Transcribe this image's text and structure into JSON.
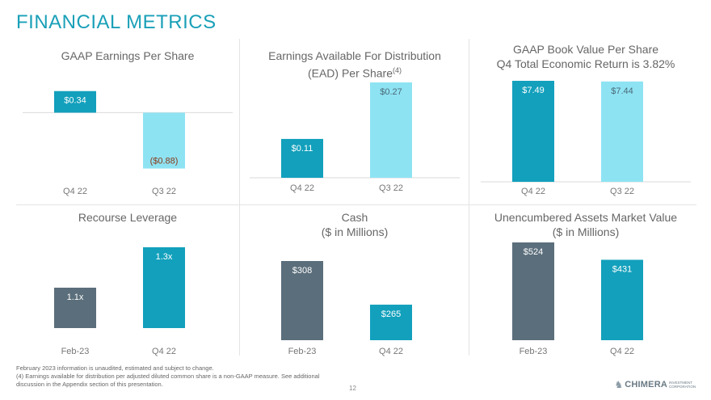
{
  "page": {
    "title": "FINANCIAL METRICS",
    "page_number": "12",
    "footnotes": [
      "February 2023 information is unaudited, estimated and subject to change.",
      "(4) Earnings available for distribution per adjusted diluted common share is a non-GAAP measure. See additional discussion in the Appendix section of this presentation."
    ],
    "logo": {
      "word": "CHIMERA",
      "sub": "INVESTMENT CORPORATION"
    }
  },
  "colors": {
    "teal": "#12a0bc",
    "light_blue": "#8ee3f3",
    "slate": "#5b6e7b",
    "title": "#1aa0b8",
    "text": "#666666"
  },
  "chart_data": [
    {
      "type": "bar",
      "title": "GAAP Earnings Per Share",
      "categories": [
        "Q4 22",
        "Q3 22"
      ],
      "values": [
        0.34,
        -0.88
      ],
      "labels": [
        "$0.34",
        "($0.88)"
      ],
      "colors": [
        "#12a0bc",
        "#8ee3f3"
      ],
      "ylim": [
        -1.0,
        0.4
      ]
    },
    {
      "type": "bar",
      "title": "Earnings Available For Distribution (EAD) Per Share",
      "title_lines": [
        "Earnings Available For Distribution",
        "(EAD) Per Share"
      ],
      "title_superscript": "(4)",
      "categories": [
        "Q4 22",
        "Q3 22"
      ],
      "values": [
        0.11,
        0.27
      ],
      "labels": [
        "$0.11",
        "$0.27"
      ],
      "colors": [
        "#12a0bc",
        "#8ee3f3"
      ],
      "ylim": [
        0,
        0.27
      ]
    },
    {
      "type": "bar",
      "title": "GAAP Book Value Per Share",
      "subtitle": "Q4 Total Economic Return is 3.82%",
      "categories": [
        "Q4 22",
        "Q3 22"
      ],
      "values": [
        7.49,
        7.44
      ],
      "labels": [
        "$7.49",
        "$7.44"
      ],
      "colors": [
        "#12a0bc",
        "#8ee3f3"
      ],
      "ylim": [
        0,
        7.49
      ]
    },
    {
      "type": "bar",
      "title": "Recourse Leverage",
      "categories": [
        "Feb-23",
        "Q4 22"
      ],
      "values": [
        1.1,
        1.3
      ],
      "labels": [
        "1.1x",
        "1.3x"
      ],
      "colors": [
        "#5b6e7b",
        "#12a0bc"
      ],
      "ylim": [
        0.9,
        1.3
      ]
    },
    {
      "type": "bar",
      "title": "Cash ($ in Millions)",
      "title_lines": [
        "Cash",
        "($ in Millions)"
      ],
      "categories": [
        "Feb-23",
        "Q4 22"
      ],
      "values": [
        308,
        265
      ],
      "labels": [
        "$308",
        "$265"
      ],
      "colors": [
        "#5b6e7b",
        "#12a0bc"
      ],
      "ylim": [
        230,
        308
      ]
    },
    {
      "type": "bar",
      "title": "Unencumbered Assets Market Value ($ in Millions)",
      "title_lines": [
        "Unencumbered Assets Market Value",
        "($ in Millions)"
      ],
      "categories": [
        "Feb-23",
        "Q4 22"
      ],
      "values": [
        524,
        431
      ],
      "labels": [
        "$524",
        "$431"
      ],
      "colors": [
        "#5b6e7b",
        "#12a0bc"
      ],
      "ylim": [
        0,
        524
      ]
    }
  ]
}
